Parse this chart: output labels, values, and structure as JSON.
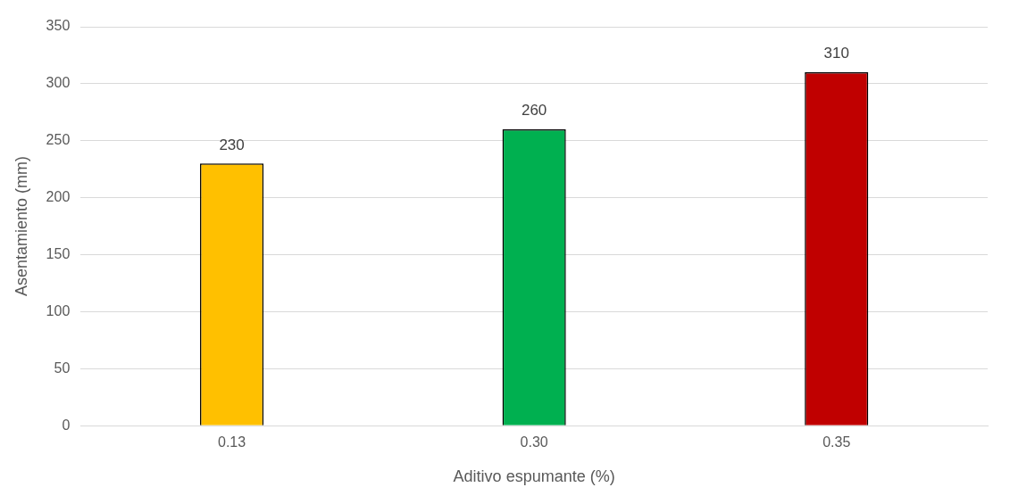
{
  "chart_data": {
    "type": "bar",
    "xlabel": "Aditivo espumante (%)",
    "ylabel": "Asentamiento (mm)",
    "categories": [
      "0.13",
      "0.30",
      "0.35"
    ],
    "values": [
      230,
      260,
      310
    ],
    "colors": [
      "#ffc000",
      "#00b050",
      "#c00000"
    ],
    "ylim": [
      0,
      350
    ],
    "yticks": [
      0,
      50,
      100,
      150,
      200,
      250,
      300,
      350
    ],
    "grid": "y",
    "data_labels": true,
    "legend": false
  }
}
